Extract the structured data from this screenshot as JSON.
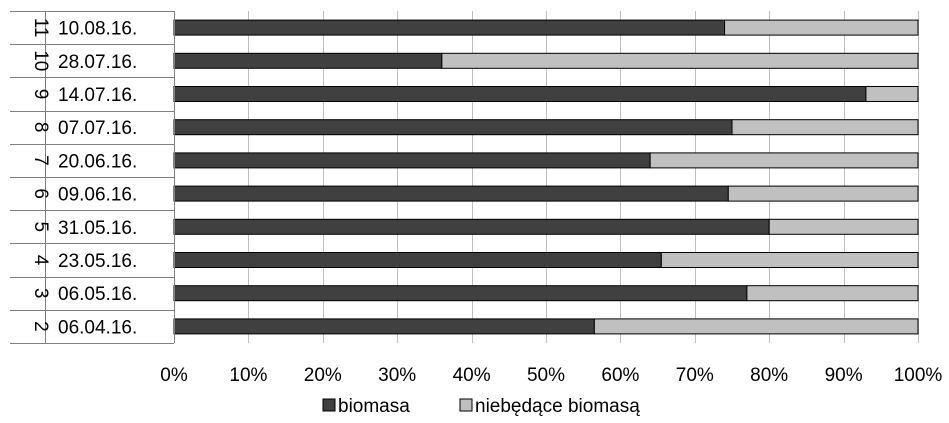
{
  "chart_data": {
    "type": "bar",
    "orientation": "horizontal",
    "stacking": "percent",
    "categories": [
      "10.08.16.",
      "28.07.16.",
      "14.07.16.",
      "07.07.16.",
      "20.06.16.",
      "09.06.16.",
      "31.05.16.",
      "23.05.16.",
      "06.05.16.",
      "06.04.16."
    ],
    "groups": [
      "11",
      "10",
      "9",
      "8",
      "7",
      "6",
      "5",
      "4",
      "3",
      "2"
    ],
    "series": [
      {
        "name": "biomasa",
        "color": "#404040",
        "values": [
          74,
          36,
          93,
          75,
          64,
          74.5,
          80,
          65.5,
          77,
          56.5
        ]
      },
      {
        "name": "niebędące biomasą",
        "color": "#c0c0c0",
        "values": [
          26,
          64,
          7,
          25,
          36,
          25.5,
          20,
          34.5,
          23,
          43.5
        ]
      }
    ],
    "x_ticks": [
      "0%",
      "10%",
      "20%",
      "30%",
      "40%",
      "50%",
      "60%",
      "70%",
      "80%",
      "90%",
      "100%"
    ],
    "xlim": [
      0,
      100
    ],
    "grid": true,
    "legend_position": "bottom"
  }
}
